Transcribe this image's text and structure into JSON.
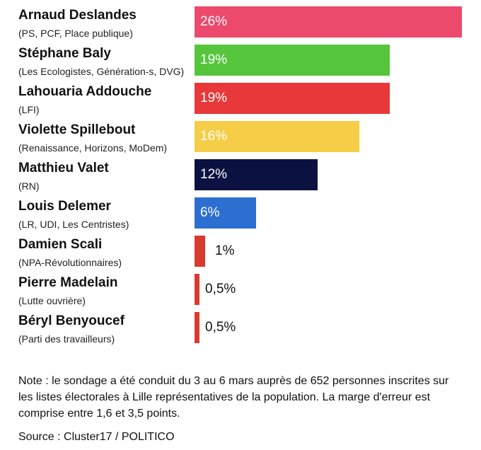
{
  "chart_data": {
    "type": "bar",
    "orientation": "horizontal",
    "title": "",
    "xlim": [
      0,
      26
    ],
    "categories": [
      "Arnaud Deslandes",
      "Stéphane Baly",
      "Lahouaria Addouche",
      "Violette Spillebout",
      "Matthieu Valet",
      "Louis Delemer",
      "Damien Scali",
      "Pierre Madelain",
      "Béryl Benyoucef"
    ],
    "values": [
      26,
      19,
      19,
      16,
      12,
      6,
      1,
      0.5,
      0.5
    ],
    "candidates": [
      {
        "name": "Arnaud Deslandes",
        "party": "(PS, PCF, Place publique)",
        "value": 26,
        "label": "26%",
        "color": "#ec4a6d"
      },
      {
        "name": "Stéphane Baly",
        "party": "(Les Ecologistes, Génération-s, DVG)",
        "value": 19,
        "label": "19%",
        "color": "#55c53b"
      },
      {
        "name": "Lahouaria Addouche",
        "party": "(LFI)",
        "value": 19,
        "label": "19%",
        "color": "#e8383a"
      },
      {
        "name": "Violette Spillebout",
        "party": "(Renaissance, Horizons, MoDem)",
        "value": 16,
        "label": "16%",
        "color": "#f5cd47"
      },
      {
        "name": "Matthieu Valet",
        "party": "(RN)",
        "value": 12,
        "label": "12%",
        "color": "#0b1140"
      },
      {
        "name": "Louis Delemer",
        "party": "(LR, UDI, Les Centristes)",
        "value": 6,
        "label": "6%",
        "color": "#2c6fd1"
      },
      {
        "name": "Damien Scali",
        "party": "(NPA-Révolutionnaires)",
        "value": 1,
        "label": "1%",
        "color": "#d93a2f"
      },
      {
        "name": "Pierre Madelain",
        "party": "(Lutte ouvrière)",
        "value": 0.5,
        "label": "0,5%",
        "color": "#d93a2f"
      },
      {
        "name": "Béryl Benyoucef",
        "party": "(Parti des travailleurs)",
        "value": 0.5,
        "label": "0,5%",
        "color": "#d93a2f"
      }
    ]
  },
  "footer": {
    "note": "Note : le sondage a été conduit du 3 au 6 mars auprès de 652 personnes inscrites sur les listes électorales à Lille représentatives de la population. La marge d'erreur est comprise entre 1,6 et 3,5 points.",
    "source": "Source : Cluster17 / POLITICO"
  }
}
